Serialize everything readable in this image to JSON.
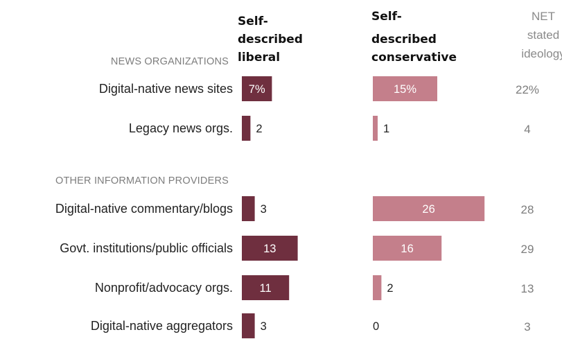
{
  "colors": {
    "liberal": "#6f2f3f",
    "conservative": "#c47f8b"
  },
  "headers": {
    "liberal": [
      "Self-",
      "described",
      "liberal"
    ],
    "conservative": [
      "Self-",
      "described",
      "conservative"
    ],
    "net": [
      "NET",
      "stated",
      "ideology"
    ]
  },
  "chart_data": {
    "type": "bar",
    "groups": [
      {
        "label": "NEWS ORGANIZATIONS",
        "categories": [
          "Digital-native news sites",
          "Legacy news orgs."
        ],
        "liberal": [
          7,
          2
        ],
        "conservative": [
          15,
          1
        ],
        "net": [
          22,
          4
        ]
      },
      {
        "label": "OTHER INFORMATION PROVIDERS",
        "categories": [
          "Digital-native commentary/blogs",
          "Govt. institutions/public officials",
          "Nonprofit/advocacy orgs.",
          "Digital-native aggregators"
        ],
        "liberal": [
          3,
          13,
          11,
          3
        ],
        "conservative": [
          26,
          16,
          2,
          0
        ],
        "net": [
          28,
          29,
          13,
          3
        ]
      }
    ],
    "value_labels": {
      "liberal": [
        "7%",
        "2",
        "3",
        "13",
        "11",
        "3"
      ],
      "conservative": [
        "15%",
        "1",
        "26",
        "16",
        "2",
        "0"
      ],
      "net": [
        "22%",
        "4",
        "28",
        "29",
        "13",
        "3"
      ]
    }
  }
}
